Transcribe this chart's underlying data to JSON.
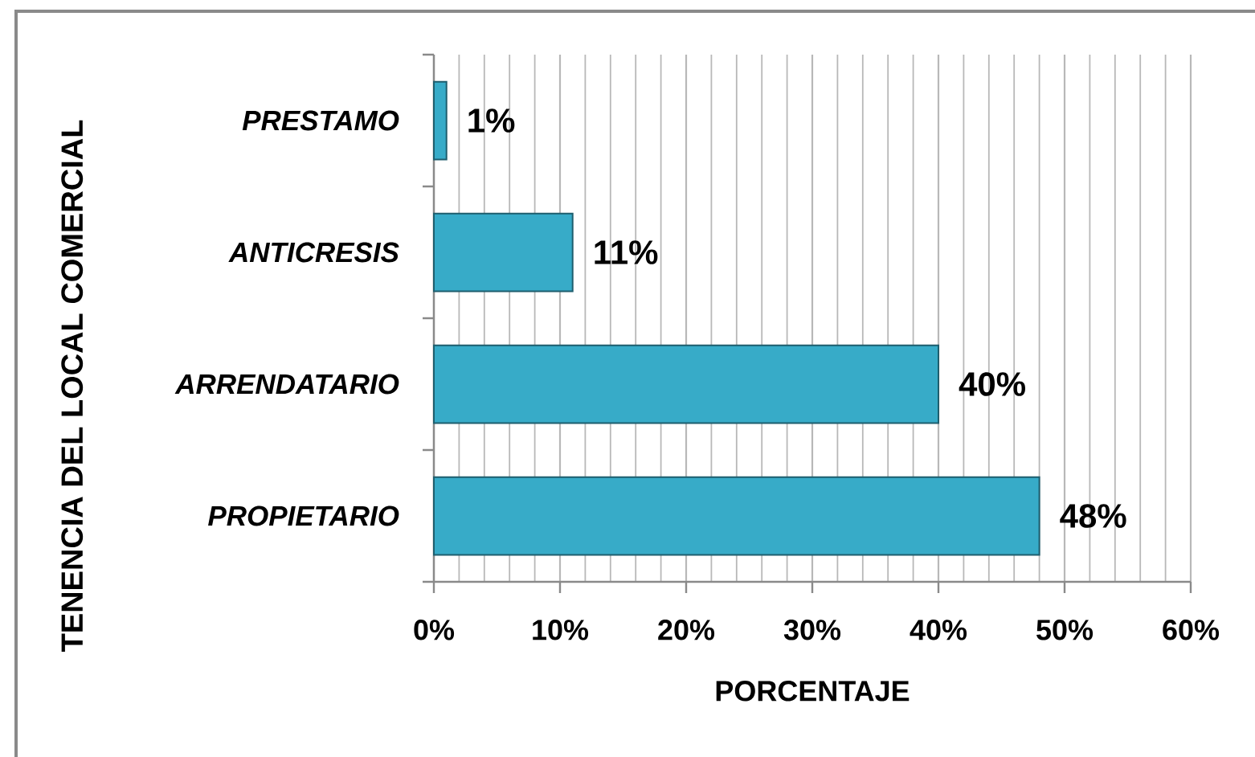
{
  "chart_data": {
    "type": "bar",
    "orientation": "horizontal",
    "xlabel": "PORCENTAJE",
    "ylabel": "TENENCIA DEL LOCAL COMERCIAL",
    "categories": [
      "PRESTAMO",
      "ANTICRESIS",
      "ARRENDATARIO",
      "PROPIETARIO"
    ],
    "values": [
      1,
      11,
      40,
      48
    ],
    "value_labels": [
      "1%",
      "11%",
      "40%",
      "48%"
    ],
    "color": "#37abc8",
    "xlim": [
      0,
      60
    ],
    "xticks": [
      {
        "value": 0,
        "label": "0%"
      },
      {
        "value": 2,
        "label": null
      },
      {
        "value": 4,
        "label": null
      },
      {
        "value": 6,
        "label": null
      },
      {
        "value": 8,
        "label": null
      },
      {
        "value": 10,
        "label": "10%"
      },
      {
        "value": 12,
        "label": null
      },
      {
        "value": 14,
        "label": null
      },
      {
        "value": 16,
        "label": null
      },
      {
        "value": 18,
        "label": null
      },
      {
        "value": 20,
        "label": "20%"
      },
      {
        "value": 22,
        "label": null
      },
      {
        "value": 24,
        "label": null
      },
      {
        "value": 26,
        "label": null
      },
      {
        "value": 28,
        "label": null
      },
      {
        "value": 30,
        "label": "30%"
      },
      {
        "value": 32,
        "label": null
      },
      {
        "value": 34,
        "label": null
      },
      {
        "value": 36,
        "label": null
      },
      {
        "value": 38,
        "label": null
      },
      {
        "value": 40,
        "label": "40%"
      },
      {
        "value": 42,
        "label": null
      },
      {
        "value": 44,
        "label": null
      },
      {
        "value": 46,
        "label": null
      },
      {
        "value": 48,
        "label": null
      },
      {
        "value": 50,
        "label": "50%"
      },
      {
        "value": 52,
        "label": null
      },
      {
        "value": 54,
        "label": null
      },
      {
        "value": 56,
        "label": null
      },
      {
        "value": 58,
        "label": null
      },
      {
        "value": 60,
        "label": "60%"
      }
    ],
    "grid": "x"
  }
}
